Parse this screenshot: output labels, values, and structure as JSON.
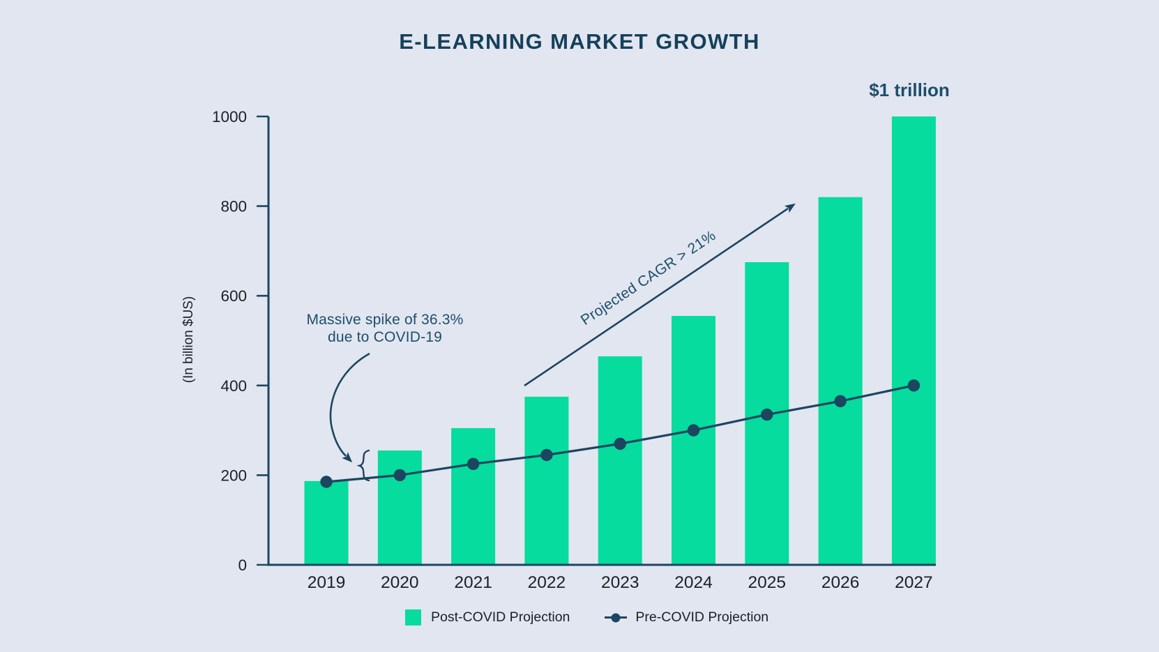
{
  "chart_data": {
    "type": "bar",
    "title": "E-LEARNING MARKET GROWTH",
    "categories": [
      "2019",
      "2020",
      "2021",
      "2022",
      "2023",
      "2024",
      "2025",
      "2026",
      "2027"
    ],
    "series": [
      {
        "name": "Post-COVID Projection",
        "kind": "bar",
        "color": "#05DC9D",
        "values": [
          187,
          255,
          305,
          375,
          465,
          555,
          675,
          820,
          1000
        ]
      },
      {
        "name": "Pre-COVID Projection",
        "kind": "line",
        "color": "#1C4560",
        "values": [
          185,
          200,
          225,
          245,
          270,
          300,
          335,
          365,
          400
        ]
      }
    ],
    "xlabel": "",
    "ylabel": "(In billion $US)",
    "ylim": [
      0,
      1000
    ],
    "yticks": [
      0,
      200,
      400,
      600,
      800,
      1000
    ],
    "grid": false,
    "legend_position": "bottom",
    "colors": {
      "background": "#E2E6F0",
      "bar": "#05DC9D",
      "navy": "#1C4560",
      "tick_text": "#1B1F26",
      "annotation": "#1D4E6C",
      "title": "#16405A"
    }
  },
  "annotations": {
    "spike": {
      "line1": "Massive spike of 36.3%",
      "line2": "due to COVID-19"
    },
    "cagr": "Projected CAGR > 21%",
    "milestone": "$1 trillion"
  }
}
